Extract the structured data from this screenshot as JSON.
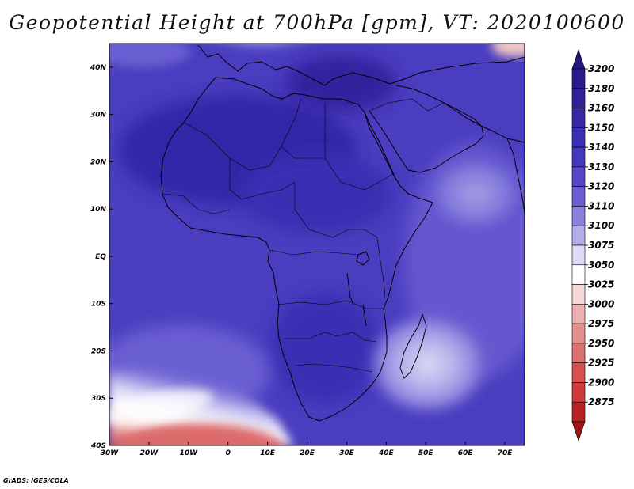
{
  "title": "Geopotential Height at 700hPa [gpm], VT: 2020100600",
  "credit": "GrADS: IGES/COLA",
  "map": {
    "lon_range": [
      -30,
      75
    ],
    "lat_range": [
      -40,
      45
    ],
    "lon_ticks": [
      {
        "value": -30,
        "label": "30W"
      },
      {
        "value": -20,
        "label": "20W"
      },
      {
        "value": -10,
        "label": "10W"
      },
      {
        "value": 0,
        "label": "0"
      },
      {
        "value": 10,
        "label": "10E"
      },
      {
        "value": 20,
        "label": "20E"
      },
      {
        "value": 30,
        "label": "30E"
      },
      {
        "value": 40,
        "label": "40E"
      },
      {
        "value": 50,
        "label": "50E"
      },
      {
        "value": 60,
        "label": "60E"
      },
      {
        "value": 70,
        "label": "70E"
      }
    ],
    "lat_ticks": [
      {
        "value": 40,
        "label": "40N"
      },
      {
        "value": 30,
        "label": "30N"
      },
      {
        "value": 20,
        "label": "20N"
      },
      {
        "value": 10,
        "label": "10N"
      },
      {
        "value": 0,
        "label": "EQ"
      },
      {
        "value": -10,
        "label": "10S"
      },
      {
        "value": -20,
        "label": "20S"
      },
      {
        "value": -30,
        "label": "30S"
      },
      {
        "value": -40,
        "label": "40S"
      }
    ]
  },
  "colorbar": {
    "levels": [
      {
        "label": "3200",
        "color": "#2a1b8e"
      },
      {
        "label": "3180",
        "color": "#2f2398"
      },
      {
        "label": "3160",
        "color": "#3529a8"
      },
      {
        "label": "3150",
        "color": "#3b30b6"
      },
      {
        "label": "3140",
        "color": "#4338c0"
      },
      {
        "label": "3130",
        "color": "#5548c8"
      },
      {
        "label": "3120",
        "color": "#6a5ed2"
      },
      {
        "label": "3110",
        "color": "#8a82dd"
      },
      {
        "label": "3100",
        "color": "#b3aeea"
      },
      {
        "label": "3075",
        "color": "#dcdaf5"
      },
      {
        "label": "3050",
        "color": "#ffffff"
      },
      {
        "label": "3025",
        "color": "#f6d8d8"
      },
      {
        "label": "3000",
        "color": "#eeb0b0"
      },
      {
        "label": "2975",
        "color": "#e68f8f"
      },
      {
        "label": "2950",
        "color": "#de7070"
      },
      {
        "label": "2925",
        "color": "#d85050"
      },
      {
        "label": "2900",
        "color": "#cf3a3a"
      },
      {
        "label": "2875",
        "color": "#b82222"
      }
    ],
    "top_arrow_color": "#22177a",
    "bottom_arrow_color": "#9c1818"
  },
  "colors": {
    "field_dark": "#3326a8",
    "field_mid": "#5142c4",
    "field_light": "#9d96e4",
    "coastline": "#000000"
  }
}
